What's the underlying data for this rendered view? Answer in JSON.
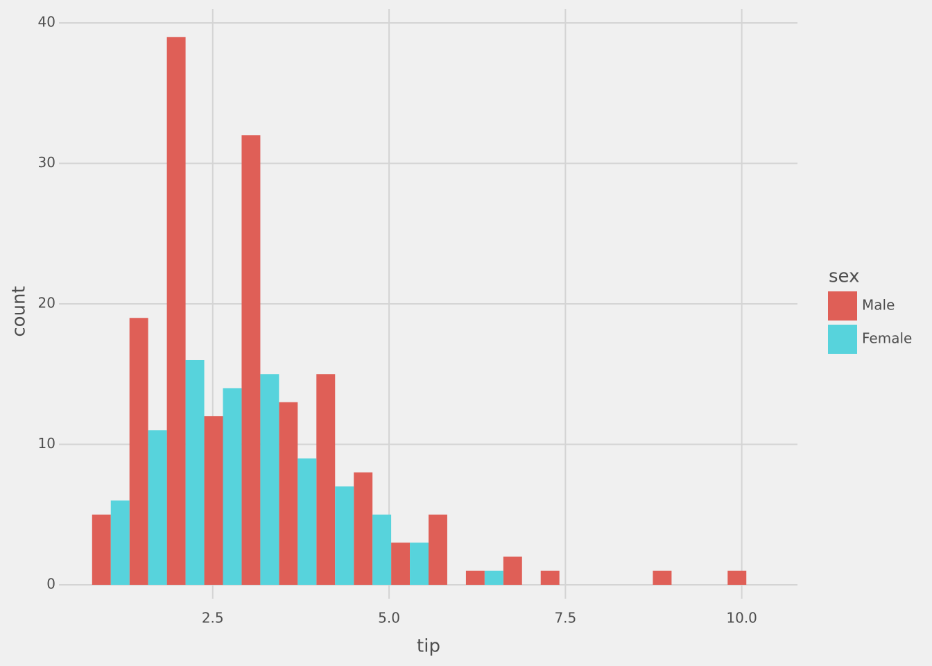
{
  "chart_data": {
    "type": "histogram",
    "x_label": "tip",
    "y_label": "count",
    "legend_title": "sex",
    "bins": [
      0.79,
      1.32,
      1.85,
      2.38,
      2.91,
      3.44,
      3.97,
      4.5,
      5.03,
      5.56,
      6.09,
      6.62,
      7.15,
      7.68,
      8.21,
      8.74,
      9.27,
      9.8,
      10.33
    ],
    "series": [
      {
        "name": "Male",
        "color": "#df5f57",
        "values": [
          5,
          19,
          39,
          12,
          32,
          13,
          15,
          8,
          3,
          5,
          1,
          2,
          1,
          0,
          0,
          1,
          0,
          1
        ]
      },
      {
        "name": "Female",
        "color": "#57d3dc",
        "values": [
          6,
          11,
          16,
          14,
          15,
          9,
          7,
          5,
          3,
          0,
          1,
          0,
          0,
          0,
          0,
          0,
          0,
          0
        ]
      }
    ],
    "xlim": [
      0.32,
      10.79
    ],
    "ylim": [
      -0.99,
      40.99
    ],
    "xticks": [
      2.5,
      {
        "value": 5,
        "label": "5.0"
      },
      7.5,
      {
        "value": 10,
        "label": "10.0"
      }
    ],
    "yticks": [
      0,
      10,
      20,
      30,
      40
    ],
    "grid": true
  }
}
